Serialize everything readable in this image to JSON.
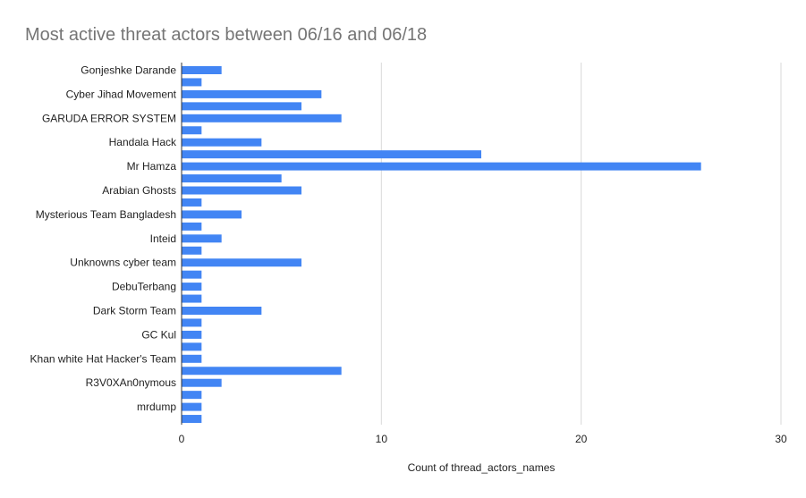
{
  "chart_data": {
    "type": "bar",
    "orientation": "horizontal",
    "title": "Most active threat actors between 06/16 and 06/18",
    "xlabel": "Count of thread_actors_names",
    "ylabel": "",
    "xlim": [
      0,
      30
    ],
    "xticks": [
      0,
      10,
      20,
      30
    ],
    "grid": true,
    "legend": "none",
    "categories": [
      "Gonjeshke Darande",
      "",
      "Cyber Jihad Movement",
      "",
      "GARUDA ERROR SYSTEM",
      "",
      "Handala Hack",
      "",
      "Mr Hamza",
      "",
      "Arabian Ghosts",
      "",
      "Mysterious Team Bangladesh",
      "",
      "Inteid",
      "",
      "Unknowns cyber team",
      "",
      "DebuTerbang",
      "",
      "Dark Storm Team",
      "",
      "GC Kul",
      "",
      "Khan white Hat Hacker's Team",
      "",
      "R3V0XAn0nymous",
      "",
      "mrdump",
      ""
    ],
    "values": [
      2,
      1,
      7,
      6,
      8,
      1,
      4,
      15,
      26,
      5,
      6,
      1,
      3,
      1,
      2,
      1,
      6,
      1,
      1,
      1,
      4,
      1,
      1,
      1,
      1,
      8,
      2,
      1,
      1,
      1
    ],
    "series": [
      {
        "values": [
          2,
          1,
          7,
          6,
          8,
          1,
          4,
          15,
          26,
          5,
          6,
          1,
          3,
          1,
          2,
          1,
          6,
          1,
          1,
          1,
          4,
          1,
          1,
          1,
          1,
          8,
          2,
          1,
          1,
          1
        ]
      }
    ],
    "colors": {
      "bar": "#4285f4",
      "grid": "#d9d9d9",
      "axis": "#333333",
      "title": "#757575",
      "text": "#222222"
    }
  }
}
